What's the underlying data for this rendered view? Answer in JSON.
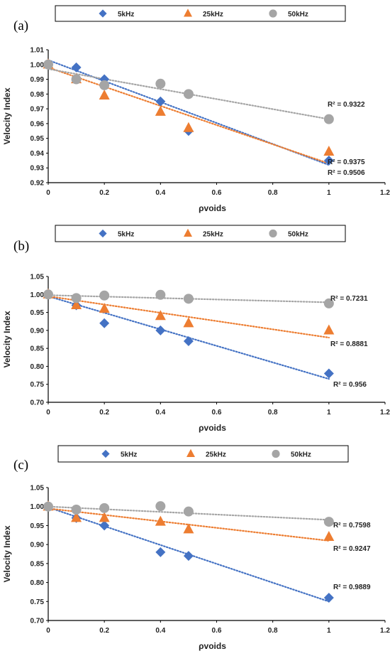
{
  "colors": {
    "5kHz": "#4472C4",
    "25kHz": "#ED7D31",
    "50kHz": "#A5A5A5"
  },
  "chart_data": [
    {
      "type": "scatter",
      "panel": "(a)",
      "xlabel": "ρvoids",
      "ylabel": "Velocity Index",
      "xlim": [
        0,
        1.2
      ],
      "ylim": [
        0.92,
        1.01
      ],
      "xticks": [
        "0",
        "0.2",
        "0.4",
        "0.6",
        "0.8",
        "1",
        "1.2"
      ],
      "yticks": [
        "0.92",
        "0.93",
        "0.94",
        "0.95",
        "0.96",
        "0.97",
        "0.98",
        "0.99",
        "1.00",
        "1.01"
      ],
      "grid": false,
      "legend": "top",
      "series": [
        {
          "name": "5kHz",
          "marker": "diamond",
          "x": [
            0,
            0.1,
            0.2,
            0.4,
            0.5,
            1
          ],
          "values": [
            1.0,
            0.998,
            0.99,
            0.975,
            0.955,
            0.935
          ],
          "trend": [
            1.003,
            0.932
          ],
          "r2": "R² = 0.9506"
        },
        {
          "name": "25kHz",
          "marker": "triangle",
          "x": [
            0,
            0.1,
            0.2,
            0.4,
            0.5,
            1
          ],
          "values": [
            1.0,
            0.99,
            0.979,
            0.968,
            0.957,
            0.941
          ],
          "trend": [
            0.998,
            0.933
          ],
          "r2": "R² = 0.9375"
        },
        {
          "name": "50kHz",
          "marker": "circle",
          "x": [
            0,
            0.1,
            0.2,
            0.4,
            0.5,
            1
          ],
          "values": [
            1.0,
            0.99,
            0.986,
            0.987,
            0.98,
            0.963
          ],
          "trend": [
            0.997,
            0.963
          ],
          "r2": "R² = 0.9322"
        }
      ]
    },
    {
      "type": "scatter",
      "panel": "(b)",
      "xlabel": "ρvoids",
      "ylabel": "Velocity Index",
      "xlim": [
        0,
        1.2
      ],
      "ylim": [
        0.7,
        1.05
      ],
      "xticks": [
        "0",
        "0.2",
        "0.4",
        "0.6",
        "0.8",
        "1",
        "1.2"
      ],
      "yticks": [
        "0.70",
        "0.75",
        "0.80",
        "0.85",
        "0.90",
        "0.95",
        "1.00",
        "1.05"
      ],
      "grid": false,
      "legend": "top",
      "series": [
        {
          "name": "5kHz",
          "marker": "diamond",
          "x": [
            0,
            0.1,
            0.2,
            0.4,
            0.5,
            1
          ],
          "values": [
            1.0,
            0.97,
            0.92,
            0.9,
            0.87,
            0.78
          ],
          "trend": [
            0.995,
            0.765
          ],
          "r2": "R² = 0.956"
        },
        {
          "name": "25kHz",
          "marker": "triangle",
          "x": [
            0,
            0.1,
            0.2,
            0.4,
            0.5,
            1
          ],
          "values": [
            1.0,
            0.97,
            0.96,
            0.94,
            0.92,
            0.9
          ],
          "trend": [
            0.995,
            0.88
          ],
          "r2": "R² = 0.8881"
        },
        {
          "name": "50kHz",
          "marker": "circle",
          "x": [
            0,
            0.1,
            0.2,
            0.4,
            0.5,
            1
          ],
          "values": [
            1.0,
            0.99,
            0.997,
            0.999,
            0.988,
            0.975
          ],
          "trend": [
            0.998,
            0.978
          ],
          "r2": "R² = 0.7231"
        }
      ]
    },
    {
      "type": "scatter",
      "panel": "(c)",
      "xlabel": "ρvoids",
      "ylabel": "Velocity Index",
      "xlim": [
        0,
        1.2
      ],
      "ylim": [
        0.7,
        1.05
      ],
      "xticks": [
        "0",
        "0.2",
        "0.4",
        "0.6",
        "0.8",
        "1",
        "1.2"
      ],
      "yticks": [
        "0.70",
        "0.75",
        "0.80",
        "0.85",
        "0.90",
        "0.95",
        "1.00",
        "1.05"
      ],
      "grid": false,
      "legend": "top",
      "series": [
        {
          "name": "5kHz",
          "marker": "diamond",
          "x": [
            0,
            0.1,
            0.2,
            0.4,
            0.5,
            1
          ],
          "values": [
            1.0,
            0.97,
            0.95,
            0.88,
            0.87,
            0.76
          ],
          "trend": [
            0.998,
            0.75
          ],
          "r2": "R² = 0.9889"
        },
        {
          "name": "25kHz",
          "marker": "triangle",
          "x": [
            0,
            0.1,
            0.2,
            0.4,
            0.5,
            1
          ],
          "values": [
            1.0,
            0.97,
            0.97,
            0.96,
            0.94,
            0.92
          ],
          "trend": [
            0.995,
            0.91
          ],
          "r2": "R² = 0.9247"
        },
        {
          "name": "50kHz",
          "marker": "circle",
          "x": [
            0,
            0.1,
            0.2,
            0.4,
            0.5,
            1
          ],
          "values": [
            1.0,
            0.992,
            0.996,
            1.001,
            0.987,
            0.96
          ],
          "trend": [
            1.0,
            0.965
          ],
          "r2": "R² = 0.7598"
        }
      ]
    }
  ]
}
